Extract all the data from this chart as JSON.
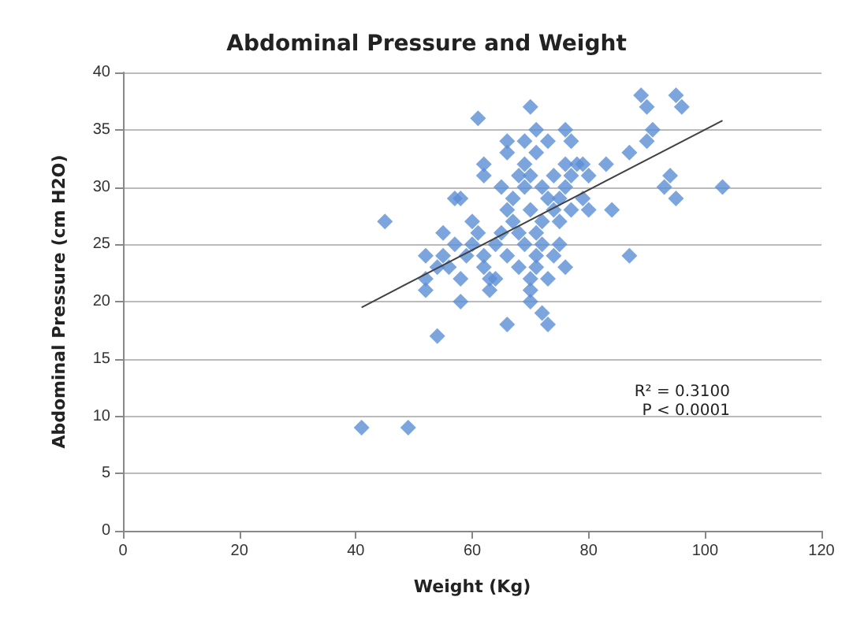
{
  "chart_data": {
    "type": "scatter",
    "title": "Abdominal Pressure and Weight",
    "xlabel": "Weight (Kg)",
    "ylabel": "Abdominal Pressure (cm H2O)",
    "xlim": [
      0,
      120
    ],
    "xticks": [
      0,
      20,
      40,
      60,
      80,
      100,
      120
    ],
    "ylim": [
      0,
      40
    ],
    "yticks": [
      0,
      5,
      10,
      15,
      20,
      25,
      30,
      35,
      40
    ],
    "grid": "y",
    "marker": "diamond",
    "annotations": [
      "R² = 0.3100",
      "P < 0.0001"
    ],
    "series": [
      {
        "color": "#5b8fd6",
        "x": [
          41,
          49,
          45,
          54,
          52,
          52,
          52,
          54,
          55,
          55,
          56,
          57,
          58,
          58,
          58,
          57,
          59,
          60,
          60,
          61,
          61,
          62,
          62,
          62,
          62,
          63,
          63,
          64,
          64,
          65,
          65,
          66,
          66,
          66,
          66,
          66,
          67,
          67,
          68,
          68,
          68,
          69,
          69,
          69,
          69,
          70,
          70,
          70,
          70,
          70,
          70,
          71,
          71,
          71,
          71,
          71,
          72,
          72,
          72,
          72,
          73,
          73,
          73,
          73,
          74,
          74,
          74,
          75,
          75,
          75,
          76,
          76,
          76,
          76,
          77,
          77,
          77,
          78,
          79,
          79,
          80,
          80,
          83,
          84,
          87,
          87,
          89,
          90,
          90,
          91,
          93,
          94,
          95,
          96,
          95,
          103
        ],
        "values": [
          9,
          9,
          27,
          17,
          21,
          22,
          24,
          23,
          24,
          26,
          23,
          29,
          29,
          22,
          20,
          25,
          24,
          27,
          25,
          36,
          26,
          32,
          31,
          24,
          23,
          21,
          22,
          22,
          25,
          26,
          30,
          34,
          33,
          28,
          18,
          24,
          27,
          29,
          31,
          26,
          23,
          34,
          32,
          30,
          25,
          37,
          31,
          28,
          22,
          21,
          20,
          35,
          33,
          26,
          24,
          23,
          30,
          27,
          25,
          19,
          34,
          29,
          22,
          18,
          31,
          28,
          24,
          29,
          27,
          25,
          35,
          32,
          30,
          23,
          34,
          31,
          28,
          32,
          32,
          29,
          31,
          28,
          32,
          28,
          33,
          24,
          38,
          37,
          34,
          35,
          30,
          31,
          38,
          37,
          29,
          30
        ]
      },
      {
        "type": "line",
        "color": "#404040",
        "marker": "none",
        "x": [
          41,
          103
        ],
        "values": [
          19.5,
          35.8
        ]
      }
    ]
  }
}
